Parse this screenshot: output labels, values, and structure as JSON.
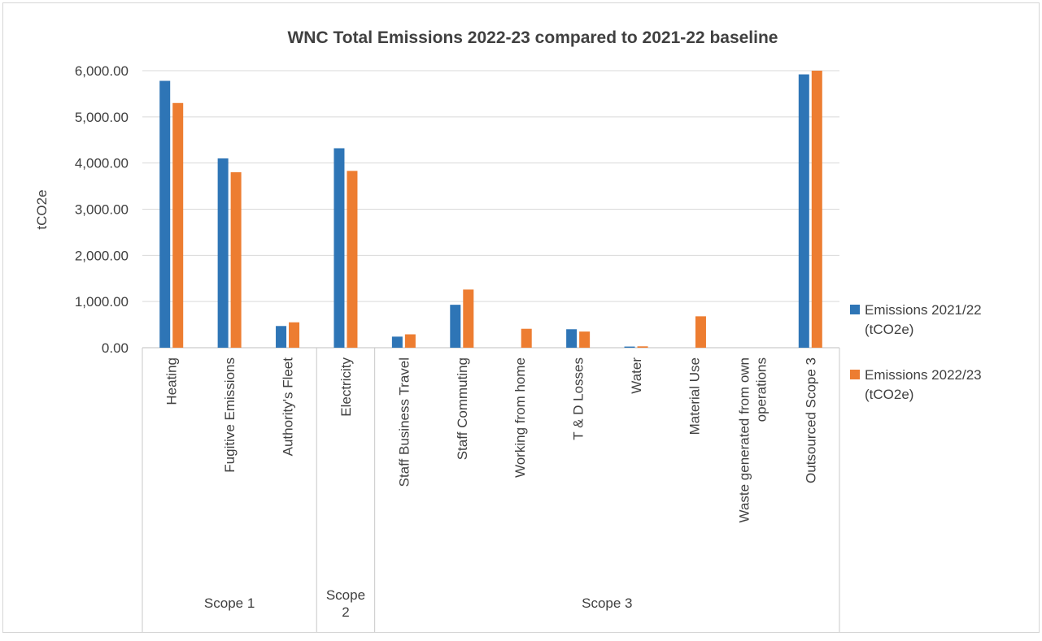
{
  "chart_data": {
    "type": "bar",
    "title": "WNC Total Emissions 2022-23 compared to 2021-22 baseline",
    "xlabel": "",
    "ylabel": "tCO2e",
    "ylim": [
      0,
      6000
    ],
    "yticks": [
      "0.00",
      "1,000.00",
      "2,000.00",
      "3,000.00",
      "4,000.00",
      "5,000.00",
      "6,000.00"
    ],
    "grid": "horizontal",
    "legend_position": "right",
    "categories": [
      "Heating",
      "Fugitive Emissions",
      "Authority's Fleet",
      "Electricity",
      "Staff Business Travel",
      "Staff Commuting",
      "Working from home",
      "T & D Losses",
      "Water",
      "Material Use",
      "Waste generated from own operations",
      "Outsourced Scope 3"
    ],
    "category_lines": [
      [
        "Heating"
      ],
      [
        "Fugitive Emissions"
      ],
      [
        "Authority's Fleet"
      ],
      [
        "Electricity"
      ],
      [
        "Staff Business Travel"
      ],
      [
        "Staff Commuting"
      ],
      [
        "Working from home"
      ],
      [
        "T & D Losses"
      ],
      [
        "Water"
      ],
      [
        "Material Use"
      ],
      [
        "Waste generated from own",
        "operations"
      ],
      [
        "Outsourced Scope 3"
      ]
    ],
    "groups": [
      {
        "label_lines": [
          "Scope 1"
        ],
        "start": 0,
        "count": 3
      },
      {
        "label_lines": [
          "Scope",
          "2"
        ],
        "start": 3,
        "count": 1
      },
      {
        "label_lines": [
          "Scope 3"
        ],
        "start": 4,
        "count": 8
      }
    ],
    "series": [
      {
        "name_lines": [
          "Emissions 2021/22",
          "(tCO2e)"
        ],
        "color": "#2e75b6",
        "values": [
          5780,
          4100,
          470,
          4320,
          240,
          930,
          0,
          400,
          25,
          0,
          0,
          5920
        ]
      },
      {
        "name_lines": [
          "Emissions 2022/23",
          "(tCO2e)"
        ],
        "color": "#ed7d31",
        "values": [
          5300,
          3800,
          550,
          3830,
          290,
          1260,
          410,
          350,
          30,
          680,
          0,
          6000
        ]
      }
    ]
  }
}
